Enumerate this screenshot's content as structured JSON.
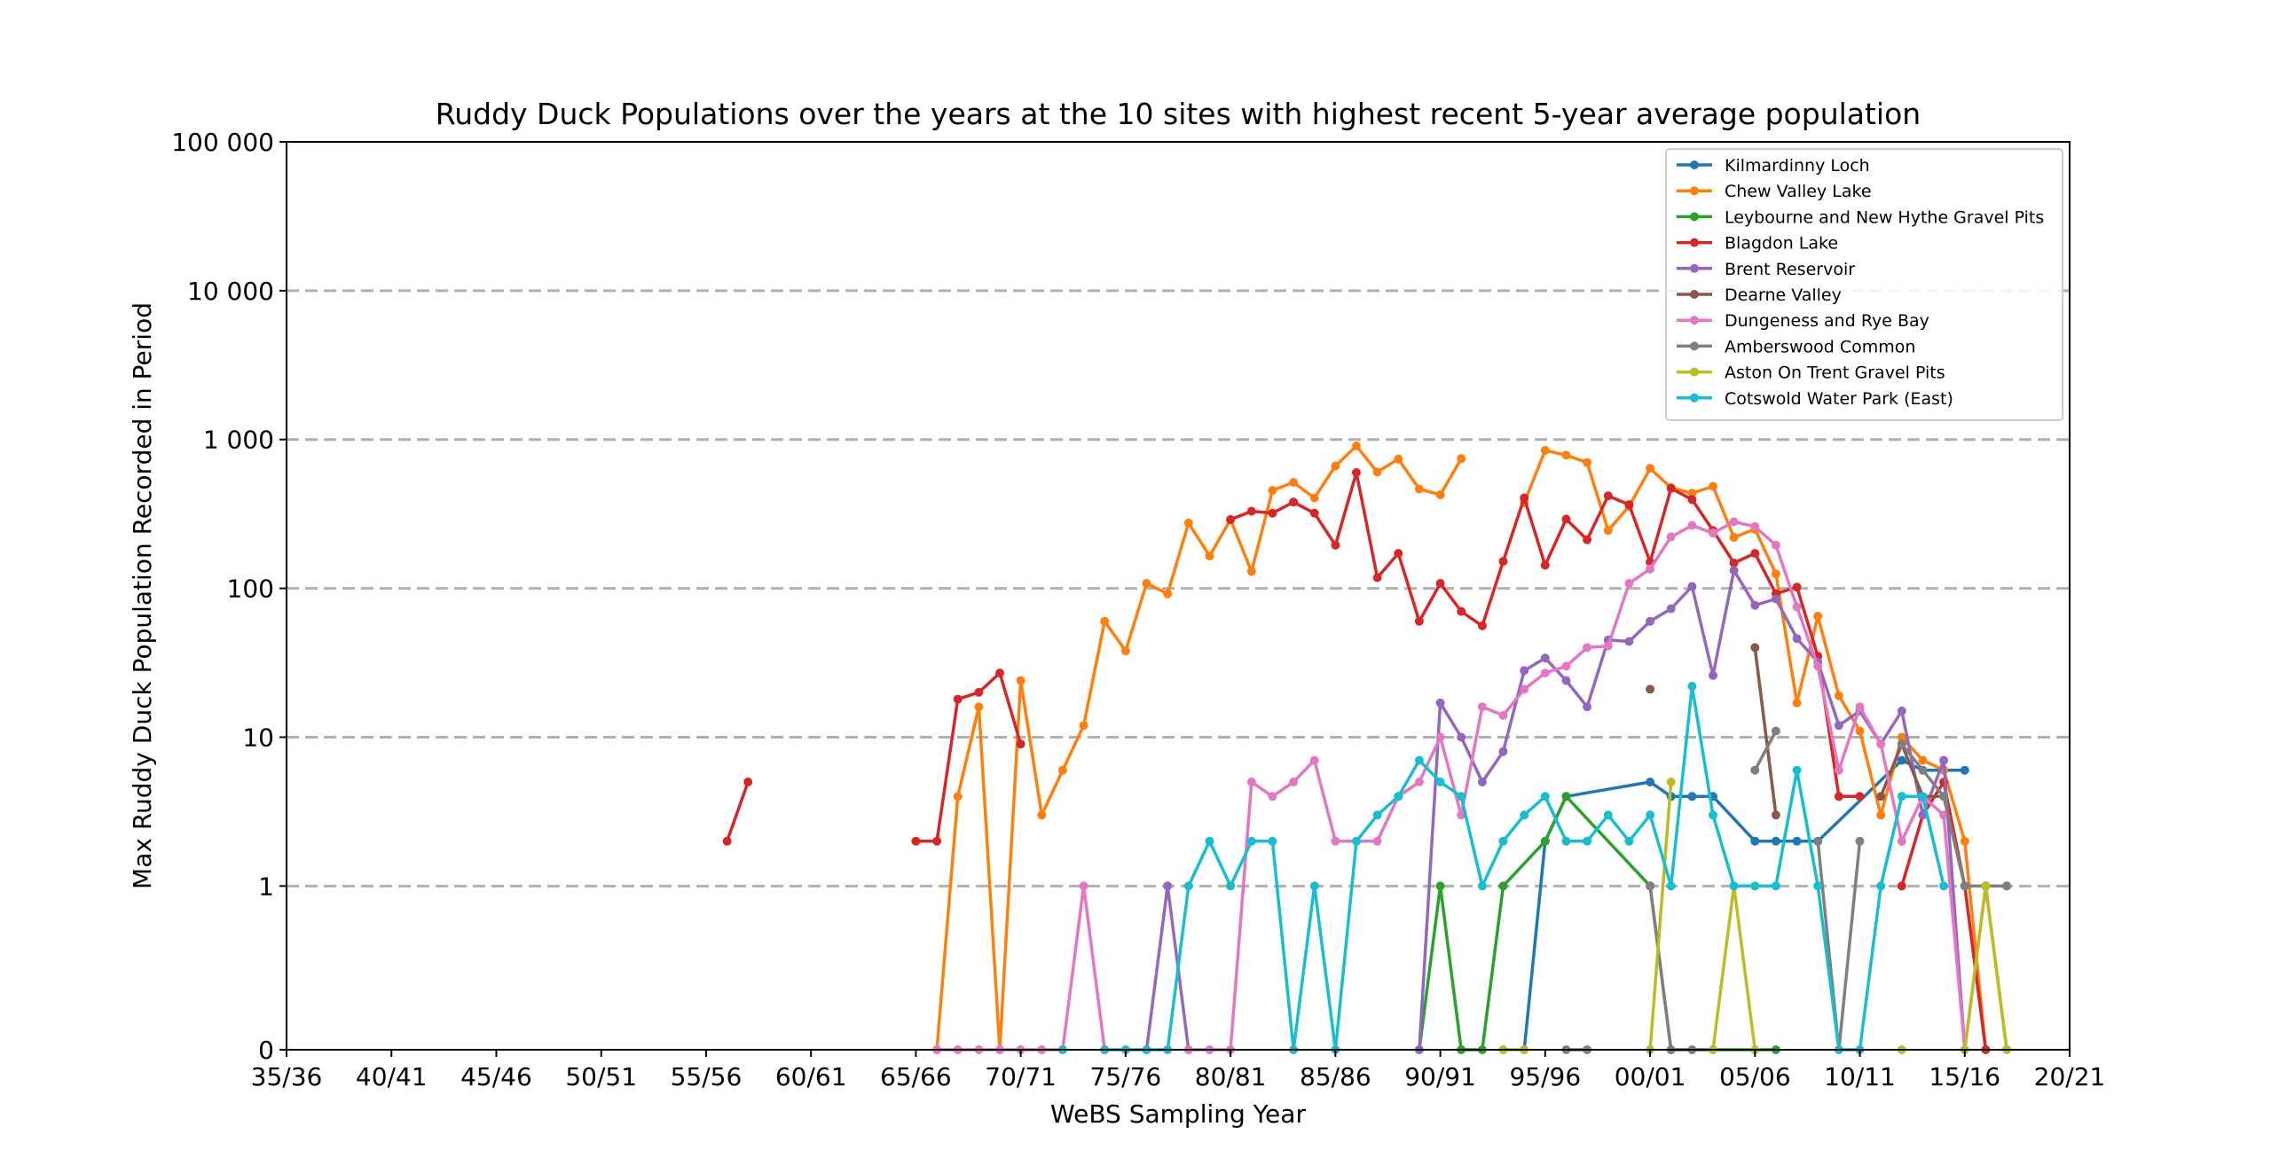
{
  "chart_data": {
    "type": "line",
    "title": "Ruddy Duck Populations over the years at the 10 sites with highest recent 5-year average population",
    "xlabel": "WeBS Sampling Year",
    "ylabel": "Max Ruddy Duck Population Recorded in Period",
    "x_ticks": [
      "35/36",
      "40/41",
      "45/46",
      "50/51",
      "55/56",
      "60/61",
      "65/66",
      "70/71",
      "75/76",
      "80/81",
      "85/86",
      "90/91",
      "95/96",
      "00/01",
      "05/06",
      "10/11",
      "15/16",
      "20/21"
    ],
    "x_tick_years": [
      1935,
      1940,
      1945,
      1950,
      1955,
      1960,
      1965,
      1970,
      1975,
      1980,
      1985,
      1990,
      1995,
      2000,
      2005,
      2010,
      2015,
      2020
    ],
    "xlim": [
      1935,
      2020
    ],
    "y_ticks": [
      {
        "value": 0,
        "label": "0"
      },
      {
        "value": 1,
        "label": "1"
      },
      {
        "value": 10,
        "label": "10"
      },
      {
        "value": 100,
        "label": "100"
      },
      {
        "value": 1000,
        "label": "1 000"
      },
      {
        "value": 10000,
        "label": "10 000"
      },
      {
        "value": 100000,
        "label": "100 000"
      }
    ],
    "yscale": "symlog",
    "ylim": [
      0,
      100000
    ],
    "grid": "horizontal dashed",
    "legend_position": "top-right",
    "series": [
      {
        "name": "Kilmardinny Loch",
        "color": "#1f77b4",
        "points": [
          [
            1994,
            0
          ],
          [
            1995,
            2
          ],
          [
            1996,
            4
          ],
          [
            2000,
            5
          ],
          [
            2001,
            4
          ],
          [
            2002,
            4
          ],
          [
            2003,
            4
          ],
          [
            2005,
            2
          ],
          [
            2006,
            2
          ],
          [
            2007,
            2
          ],
          [
            2008,
            2
          ],
          [
            2012,
            7
          ],
          [
            2013,
            6
          ],
          [
            2014,
            6
          ],
          [
            2015,
            6
          ]
        ]
      },
      {
        "name": "Chew Valley Lake",
        "color": "#ff7f0e",
        "points": [
          [
            1966,
            0
          ],
          [
            1967,
            4
          ],
          [
            1968,
            16
          ],
          [
            1969,
            0
          ],
          [
            1970,
            24
          ],
          [
            1971,
            3
          ],
          [
            1972,
            6
          ],
          [
            1973,
            12
          ],
          [
            1974,
            60
          ],
          [
            1975,
            38
          ],
          [
            1976,
            108
          ],
          [
            1977,
            92
          ],
          [
            1978,
            275
          ],
          [
            1979,
            165
          ],
          [
            1980,
            290
          ],
          [
            1981,
            130
          ],
          [
            1982,
            455
          ],
          [
            1983,
            515
          ],
          [
            1984,
            405
          ],
          [
            1985,
            665
          ],
          [
            1986,
            905
          ],
          [
            1987,
            605
          ],
          [
            1988,
            740
          ],
          [
            1989,
            465
          ],
          [
            1990,
            425
          ],
          [
            1991,
            745
          ],
          null,
          [
            1994,
            375
          ],
          [
            1995,
            845
          ],
          [
            1996,
            785
          ],
          [
            1997,
            700
          ],
          [
            1998,
            245
          ],
          [
            1999,
            355
          ],
          [
            2000,
            640
          ],
          [
            2001,
            475
          ],
          [
            2002,
            435
          ],
          [
            2003,
            485
          ],
          [
            2004,
            220
          ],
          [
            2005,
            250
          ],
          [
            2006,
            125
          ],
          [
            2007,
            17
          ],
          [
            2008,
            65
          ],
          [
            2009,
            19
          ],
          [
            2010,
            11
          ],
          [
            2011,
            3
          ],
          [
            2012,
            10
          ],
          [
            2013,
            7
          ],
          [
            2014,
            6
          ],
          [
            2015,
            2
          ],
          [
            2016,
            0
          ]
        ]
      },
      {
        "name": "Leybourne and New Hythe Gravel Pits",
        "color": "#2ca02c",
        "points": [
          [
            1989,
            0
          ],
          [
            1990,
            1
          ],
          [
            1991,
            0
          ],
          [
            1992,
            0
          ],
          [
            1993,
            1
          ],
          [
            1995,
            2
          ],
          [
            1996,
            4
          ],
          [
            2000,
            1
          ],
          [
            2001,
            0
          ],
          [
            2006,
            0
          ]
        ]
      },
      {
        "name": "Blagdon Lake",
        "color": "#d62728",
        "points": [
          [
            1956,
            2
          ],
          [
            1957,
            5
          ],
          null,
          [
            1965,
            2
          ],
          [
            1966,
            2
          ],
          [
            1967,
            18
          ],
          [
            1968,
            20
          ],
          [
            1969,
            27
          ],
          [
            1970,
            9
          ],
          null,
          [
            1980,
            290
          ],
          [
            1981,
            330
          ],
          [
            1982,
            320
          ],
          [
            1983,
            380
          ],
          [
            1984,
            320
          ],
          [
            1985,
            195
          ],
          [
            1986,
            600
          ],
          [
            1987,
            118
          ],
          [
            1988,
            172
          ],
          [
            1989,
            60
          ],
          [
            1990,
            108
          ],
          [
            1991,
            70
          ],
          [
            1992,
            56
          ],
          [
            1993,
            152
          ],
          [
            1994,
            405
          ],
          [
            1995,
            143
          ],
          [
            1996,
            292
          ],
          [
            1997,
            212
          ],
          [
            1998,
            418
          ],
          [
            1999,
            365
          ],
          [
            2000,
            150
          ],
          [
            2001,
            470
          ],
          [
            2002,
            395
          ],
          [
            2003,
            245
          ],
          [
            2004,
            148
          ],
          [
            2005,
            172
          ],
          [
            2006,
            92
          ],
          [
            2007,
            102
          ],
          [
            2008,
            35
          ],
          [
            2009,
            4
          ],
          [
            2010,
            4
          ],
          null,
          [
            2012,
            1
          ],
          [
            2013,
            3
          ],
          [
            2014,
            5
          ],
          [
            2015,
            1
          ],
          [
            2016,
            0
          ]
        ]
      },
      {
        "name": "Brent Reservoir",
        "color": "#9467bd",
        "points": [
          [
            1976,
            0
          ],
          [
            1977,
            1
          ],
          [
            1978,
            0
          ],
          null,
          [
            1989,
            0
          ],
          [
            1990,
            17
          ],
          [
            1991,
            10
          ],
          [
            1992,
            5
          ],
          [
            1993,
            8
          ],
          [
            1994,
            28
          ],
          [
            1995,
            34
          ],
          [
            1996,
            24
          ],
          [
            1997,
            16
          ],
          [
            1998,
            45
          ],
          [
            1999,
            44
          ],
          [
            2000,
            60
          ],
          [
            2001,
            73
          ],
          [
            2002,
            103
          ],
          [
            2003,
            26
          ],
          [
            2004,
            132
          ],
          [
            2005,
            77
          ],
          [
            2006,
            85
          ],
          [
            2007,
            46
          ],
          [
            2008,
            32
          ],
          [
            2009,
            12
          ],
          [
            2010,
            15
          ],
          [
            2011,
            9
          ],
          [
            2012,
            15
          ],
          [
            2013,
            3
          ],
          [
            2014,
            7
          ],
          [
            2015,
            0
          ]
        ]
      },
      {
        "name": "Dearne Valley",
        "color": "#8c564b",
        "points": [
          [
            2000,
            21
          ],
          null,
          [
            2005,
            40
          ],
          [
            2006,
            3
          ],
          null,
          [
            2011,
            4
          ],
          [
            2012,
            9
          ],
          [
            2013,
            4
          ],
          [
            2014,
            4
          ],
          [
            2015,
            1
          ],
          [
            2016,
            1
          ],
          [
            2017,
            0
          ]
        ]
      },
      {
        "name": "Dungeness and Rye Bay",
        "color": "#e377c2",
        "points": [
          [
            1966,
            0
          ],
          [
            1967,
            0
          ],
          [
            1968,
            0
          ],
          [
            1969,
            0
          ],
          [
            1970,
            0
          ],
          [
            1971,
            0
          ],
          [
            1972,
            0
          ],
          [
            1973,
            1
          ],
          [
            1974,
            0
          ],
          null,
          [
            1978,
            0
          ],
          [
            1979,
            0
          ],
          [
            1980,
            0
          ],
          [
            1981,
            5
          ],
          [
            1982,
            4
          ],
          [
            1983,
            5
          ],
          [
            1984,
            7
          ],
          [
            1985,
            2
          ],
          [
            1986,
            2
          ],
          [
            1987,
            2
          ],
          [
            1988,
            4
          ],
          [
            1989,
            5
          ],
          [
            1990,
            10
          ],
          [
            1991,
            3
          ],
          [
            1992,
            16
          ],
          [
            1993,
            14
          ],
          [
            1994,
            21
          ],
          [
            1995,
            27
          ],
          [
            1996,
            30
          ],
          [
            1997,
            40
          ],
          [
            1998,
            41
          ],
          [
            1999,
            108
          ],
          [
            2000,
            135
          ],
          [
            2001,
            222
          ],
          [
            2002,
            265
          ],
          [
            2003,
            235
          ],
          [
            2004,
            280
          ],
          [
            2005,
            260
          ],
          [
            2006,
            195
          ],
          [
            2007,
            75
          ],
          [
            2008,
            30
          ],
          [
            2009,
            6
          ],
          [
            2010,
            16
          ],
          [
            2011,
            9
          ],
          [
            2012,
            2
          ],
          [
            2013,
            4
          ],
          [
            2014,
            3
          ],
          [
            2015,
            0
          ],
          [
            2016,
            1
          ],
          [
            2017,
            1
          ]
        ]
      },
      {
        "name": "Amberswood Common",
        "color": "#7f7f7f",
        "points": [
          [
            1996,
            0
          ],
          [
            1997,
            0
          ],
          null,
          [
            2000,
            1
          ],
          [
            2001,
            0
          ],
          [
            2002,
            0
          ],
          [
            2003,
            0
          ],
          null,
          [
            2005,
            6
          ],
          [
            2006,
            11
          ],
          null,
          [
            2008,
            2
          ],
          [
            2009,
            0
          ],
          [
            2010,
            2
          ],
          null,
          [
            2012,
            9
          ],
          [
            2013,
            6
          ],
          [
            2014,
            4
          ],
          [
            2015,
            1
          ],
          [
            2016,
            1
          ],
          [
            2017,
            1
          ]
        ]
      },
      {
        "name": "Aston On Trent Gravel Pits",
        "color": "#bcbd22",
        "points": [
          [
            1993,
            0
          ],
          [
            1994,
            0
          ],
          null,
          [
            2000,
            0
          ],
          [
            2001,
            5
          ],
          null,
          [
            2003,
            0
          ],
          [
            2004,
            1
          ],
          [
            2005,
            0
          ],
          null,
          [
            2012,
            0
          ],
          null,
          [
            2015,
            0
          ],
          [
            2016,
            1
          ],
          [
            2017,
            0
          ]
        ]
      },
      {
        "name": "Cotswold Water Park (East)",
        "color": "#17becf",
        "points": [
          [
            1972,
            0
          ],
          null,
          [
            1974,
            0
          ],
          [
            1975,
            0
          ],
          [
            1976,
            0
          ],
          [
            1977,
            0
          ],
          [
            1978,
            1
          ],
          [
            1979,
            2
          ],
          [
            1980,
            1
          ],
          [
            1981,
            2
          ],
          [
            1982,
            2
          ],
          [
            1983,
            0
          ],
          [
            1984,
            1
          ],
          [
            1985,
            0
          ],
          [
            1986,
            2
          ],
          [
            1987,
            3
          ],
          [
            1988,
            4
          ],
          [
            1989,
            7
          ],
          [
            1990,
            5
          ],
          [
            1991,
            4
          ],
          [
            1992,
            1
          ],
          [
            1993,
            2
          ],
          [
            1994,
            3
          ],
          [
            1995,
            4
          ],
          [
            1996,
            2
          ],
          [
            1997,
            2
          ],
          [
            1998,
            3
          ],
          [
            1999,
            2
          ],
          [
            2000,
            3
          ],
          [
            2001,
            1
          ],
          [
            2002,
            22
          ],
          [
            2003,
            3
          ],
          [
            2004,
            1
          ],
          [
            2005,
            1
          ],
          [
            2006,
            1
          ],
          [
            2007,
            6
          ],
          [
            2008,
            1
          ],
          [
            2009,
            0
          ],
          [
            2010,
            0
          ],
          [
            2011,
            1
          ],
          [
            2012,
            4
          ],
          [
            2013,
            4
          ],
          [
            2014,
            1
          ]
        ]
      }
    ]
  }
}
